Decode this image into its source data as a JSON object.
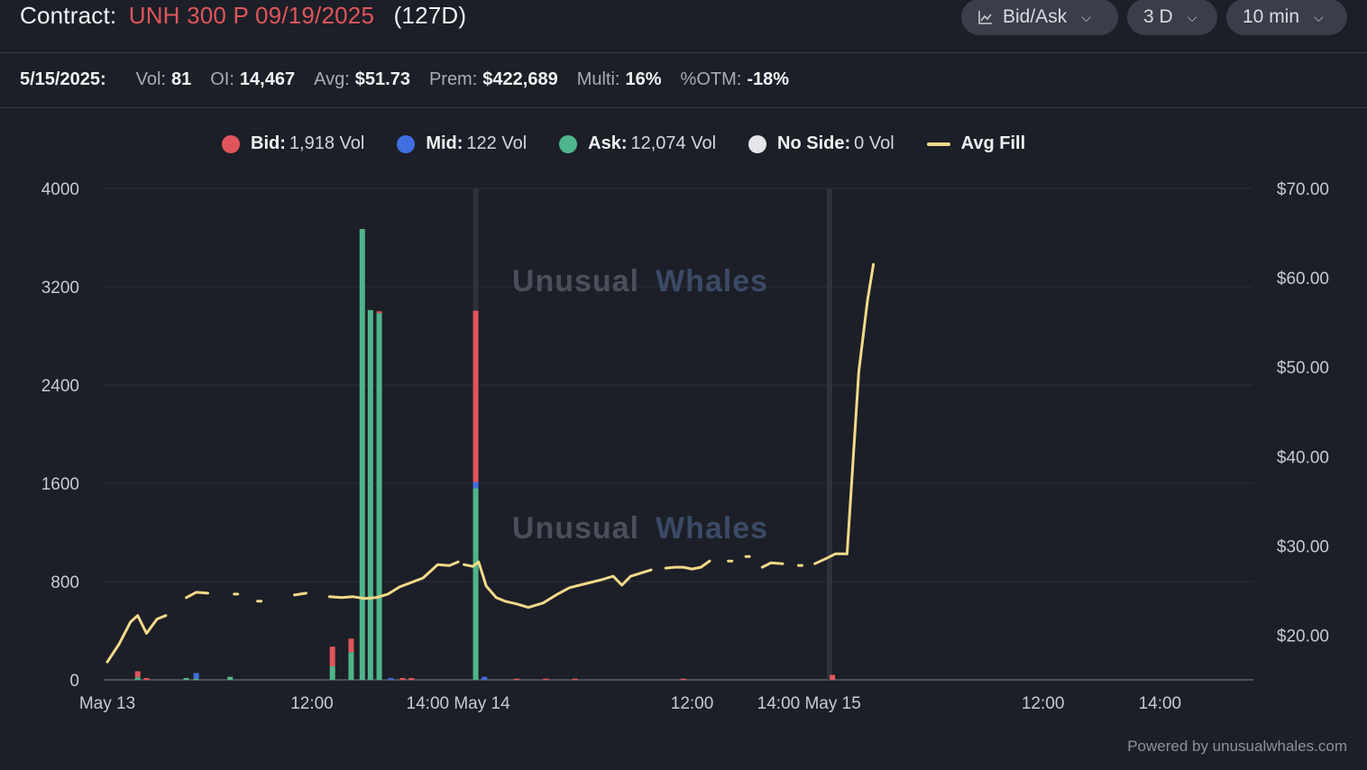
{
  "header": {
    "contract_label": "Contract:",
    "contract_symbol": "UNH 300 P 09/19/2025",
    "dte": "(127D)",
    "controls": {
      "chart_type": "Bid/Ask",
      "range": "3 D",
      "interval": "10 min"
    }
  },
  "stats": {
    "date": "5/15/2025:",
    "vol_label": "Vol:",
    "vol": "81",
    "oi_label": "OI:",
    "oi": "14,467",
    "avg_label": "Avg:",
    "avg": "$51.73",
    "prem_label": "Prem:",
    "prem": "$422,689",
    "multi_label": "Multi:",
    "multi": "16%",
    "otm_label": "%OTM:",
    "otm": "-18%"
  },
  "legend": {
    "bid_name": "Bid:",
    "bid_val": "1,918 Vol",
    "mid_name": "Mid:",
    "mid_val": "122 Vol",
    "ask_name": "Ask:",
    "ask_val": "12,074 Vol",
    "noside_name": "No Side:",
    "noside_val": "0 Vol",
    "avgfill_name": "Avg Fill"
  },
  "colors": {
    "bid": "#e0555b",
    "mid": "#3f6fe0",
    "ask": "#4fb58a",
    "noside": "#e3e5e8",
    "avg_fill": "#f3d98a",
    "contract_symbol": "#e0555b"
  },
  "watermark": {
    "word1": "Unusual",
    "word2": "Whales"
  },
  "footer": {
    "powered": "Powered by unusualwhales.com"
  },
  "chart_data": {
    "type": "bar",
    "x_axis": {
      "tick_labels": [
        "May 13",
        "12:00",
        "14:00 May 14",
        "12:00",
        "14:00 May 15",
        "12:00",
        "14:00"
      ],
      "tick_positions_hours": [
        0,
        3.5,
        6,
        10,
        12,
        16,
        18
      ]
    },
    "y_left": {
      "min": 0,
      "max": 4000,
      "ticks": [
        0,
        800,
        1600,
        2400,
        3200,
        4000
      ],
      "tick_labels": [
        "0",
        "800",
        "1600",
        "2400",
        "3200",
        "4000"
      ]
    },
    "y_right": {
      "min": 15,
      "max": 70,
      "ticks": [
        20,
        30,
        40,
        50,
        60,
        70
      ],
      "tick_labels": [
        "$20.00",
        "$30.00",
        "$40.00",
        "$50.00",
        "$60.00",
        "$70.00"
      ]
    },
    "session_markers_hours": [
      6.3,
      12.35
    ],
    "bars": [
      {
        "t": 0.52,
        "bid": 50,
        "mid": 0,
        "ask": 20
      },
      {
        "t": 0.67,
        "bid": 15,
        "mid": 0,
        "ask": 0
      },
      {
        "t": 1.35,
        "bid": 0,
        "mid": 0,
        "ask": 15
      },
      {
        "t": 1.52,
        "bid": 0,
        "mid": 45,
        "ask": 10
      },
      {
        "t": 2.1,
        "bid": 0,
        "mid": 0,
        "ask": 25
      },
      {
        "t": 3.85,
        "bid": 160,
        "mid": 0,
        "ask": 110
      },
      {
        "t": 4.17,
        "bid": 110,
        "mid": 0,
        "ask": 225
      },
      {
        "t": 4.36,
        "bid": 0,
        "mid": 0,
        "ask": 3670
      },
      {
        "t": 4.5,
        "bid": 0,
        "mid": 0,
        "ask": 3010
      },
      {
        "t": 4.65,
        "bid": 15,
        "mid": 0,
        "ask": 2985
      },
      {
        "t": 4.85,
        "bid": 0,
        "mid": 15,
        "ask": 0
      },
      {
        "t": 5.05,
        "bid": 15,
        "mid": 0,
        "ask": 0
      },
      {
        "t": 5.2,
        "bid": 15,
        "mid": 0,
        "ask": 0
      },
      {
        "t": 6.3,
        "bid": 1395,
        "mid": 50,
        "ask": 1560
      },
      {
        "t": 6.45,
        "bid": 0,
        "mid": 25,
        "ask": 0
      },
      {
        "t": 7.0,
        "bid": 10,
        "mid": 0,
        "ask": 0
      },
      {
        "t": 7.5,
        "bid": 10,
        "mid": 0,
        "ask": 0
      },
      {
        "t": 8.0,
        "bid": 10,
        "mid": 0,
        "ask": 0
      },
      {
        "t": 9.85,
        "bid": 10,
        "mid": 0,
        "ask": 0
      },
      {
        "t": 12.4,
        "bid": 40,
        "mid": 0,
        "ask": 0
      }
    ],
    "avg_fill_segments": [
      [
        [
          0.0,
          17.0
        ],
        [
          0.2,
          19.0
        ],
        [
          0.4,
          21.5
        ],
        [
          0.52,
          22.2
        ],
        [
          0.67,
          20.2
        ],
        [
          0.85,
          21.8
        ],
        [
          1.0,
          22.2
        ]
      ],
      [
        [
          1.35,
          24.2
        ],
        [
          1.52,
          24.8
        ],
        [
          1.72,
          24.7
        ]
      ],
      [
        [
          2.2,
          24.6
        ]
      ],
      [
        [
          2.6,
          23.8
        ]
      ],
      [
        [
          3.2,
          24.5
        ],
        [
          3.4,
          24.7
        ]
      ],
      [
        [
          3.8,
          24.3
        ],
        [
          4.0,
          24.2
        ],
        [
          4.2,
          24.3
        ],
        [
          4.4,
          24.1
        ],
        [
          4.6,
          24.2
        ],
        [
          4.8,
          24.6
        ],
        [
          5.0,
          25.4
        ],
        [
          5.2,
          25.9
        ],
        [
          5.4,
          26.4
        ],
        [
          5.65,
          27.9
        ],
        [
          5.85,
          27.8
        ],
        [
          6.0,
          28.2
        ]
      ],
      [
        [
          6.1,
          27.9
        ],
        [
          6.25,
          27.7
        ],
        [
          6.35,
          28.2
        ],
        [
          6.48,
          25.5
        ],
        [
          6.65,
          24.2
        ],
        [
          6.8,
          23.8
        ],
        [
          7.0,
          23.5
        ],
        [
          7.2,
          23.1
        ],
        [
          7.45,
          23.6
        ],
        [
          7.7,
          24.6
        ],
        [
          7.9,
          25.3
        ],
        [
          8.2,
          25.8
        ],
        [
          8.45,
          26.2
        ],
        [
          8.65,
          26.6
        ],
        [
          8.8,
          25.6
        ],
        [
          8.95,
          26.6
        ],
        [
          9.1,
          26.9
        ],
        [
          9.3,
          27.3
        ]
      ],
      [
        [
          9.55,
          27.5
        ],
        [
          9.7,
          27.6
        ],
        [
          9.85,
          27.6
        ],
        [
          10.0,
          27.4
        ],
        [
          10.15,
          27.6
        ],
        [
          10.3,
          28.3
        ]
      ],
      [
        [
          10.65,
          28.3
        ]
      ],
      [
        [
          10.95,
          28.8
        ]
      ],
      [
        [
          11.2,
          27.6
        ],
        [
          11.35,
          28.1
        ],
        [
          11.55,
          28.0
        ]
      ],
      [
        [
          11.85,
          27.8
        ]
      ],
      [
        [
          12.1,
          28.0
        ],
        [
          12.3,
          28.6
        ],
        [
          12.45,
          29.1
        ],
        [
          12.65,
          29.1
        ],
        [
          12.85,
          49.5
        ],
        [
          13.0,
          57.5
        ],
        [
          13.1,
          61.5
        ]
      ]
    ]
  }
}
